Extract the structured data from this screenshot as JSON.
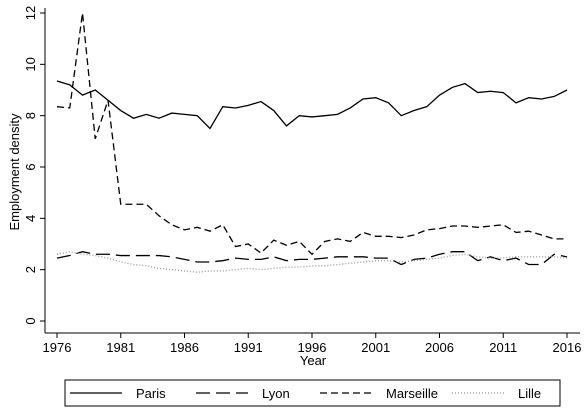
{
  "chart_data": {
    "type": "line",
    "x_label": "Year",
    "y_label": "Employment density",
    "x": [
      1976,
      1977,
      1978,
      1979,
      1980,
      1981,
      1982,
      1983,
      1984,
      1985,
      1986,
      1987,
      1988,
      1989,
      1990,
      1991,
      1992,
      1993,
      1994,
      1995,
      1996,
      1997,
      1998,
      1999,
      2000,
      2001,
      2002,
      2003,
      2004,
      2005,
      2006,
      2007,
      2008,
      2009,
      2010,
      2011,
      2012,
      2013,
      2014,
      2015,
      2016
    ],
    "xlim": [
      1976,
      2016
    ],
    "xticks": [
      1976,
      1981,
      1986,
      1991,
      1996,
      2001,
      2006,
      2011,
      2016
    ],
    "ylim": [
      0,
      12
    ],
    "yticks": [
      0,
      2,
      4,
      6,
      8,
      10,
      12
    ],
    "series": [
      {
        "name": "Paris",
        "color": "#000000",
        "dash": "none",
        "values": [
          9.35,
          9.2,
          8.8,
          9.0,
          8.6,
          8.2,
          7.9,
          8.05,
          7.9,
          8.1,
          8.05,
          8.0,
          7.5,
          8.35,
          8.3,
          8.4,
          8.55,
          8.2,
          7.6,
          8.0,
          7.95,
          8.0,
          8.05,
          8.3,
          8.65,
          8.7,
          8.5,
          8.0,
          8.2,
          8.35,
          8.8,
          9.1,
          9.25,
          8.9,
          8.95,
          8.9,
          8.5,
          8.7,
          8.65,
          8.75,
          9.0
        ]
      },
      {
        "name": "Lyon",
        "color": "#000000",
        "dash": "14 6",
        "values": [
          2.45,
          2.55,
          2.7,
          2.6,
          2.6,
          2.55,
          2.55,
          2.55,
          2.55,
          2.5,
          2.4,
          2.3,
          2.3,
          2.35,
          2.45,
          2.4,
          2.4,
          2.5,
          2.35,
          2.4,
          2.4,
          2.45,
          2.5,
          2.5,
          2.5,
          2.45,
          2.45,
          2.2,
          2.4,
          2.45,
          2.6,
          2.7,
          2.7,
          2.35,
          2.5,
          2.35,
          2.45,
          2.2,
          2.2,
          2.6,
          2.5
        ]
      },
      {
        "name": "Marseille",
        "color": "#000000",
        "dash": "7 4",
        "values": [
          8.35,
          8.3,
          12.0,
          7.1,
          8.6,
          4.55,
          4.55,
          4.55,
          4.1,
          3.75,
          3.55,
          3.65,
          3.5,
          3.75,
          2.9,
          3.0,
          2.65,
          3.15,
          2.95,
          3.1,
          2.6,
          3.1,
          3.2,
          3.1,
          3.45,
          3.3,
          3.3,
          3.25,
          3.35,
          3.55,
          3.6,
          3.7,
          3.7,
          3.65,
          3.7,
          3.75,
          3.45,
          3.5,
          3.35,
          3.2,
          3.2
        ]
      },
      {
        "name": "Lille",
        "color": "#9a9a9a",
        "dash": "1 2",
        "values": [
          2.6,
          2.7,
          2.6,
          2.55,
          2.45,
          2.3,
          2.2,
          2.15,
          2.05,
          2.0,
          1.95,
          1.9,
          1.95,
          1.95,
          2.0,
          2.05,
          2.0,
          2.05,
          2.1,
          2.1,
          2.15,
          2.15,
          2.2,
          2.25,
          2.3,
          2.35,
          2.35,
          2.3,
          2.35,
          2.4,
          2.45,
          2.55,
          2.6,
          2.5,
          2.45,
          2.45,
          2.5,
          2.5,
          2.5,
          2.5,
          2.45
        ]
      }
    ]
  }
}
